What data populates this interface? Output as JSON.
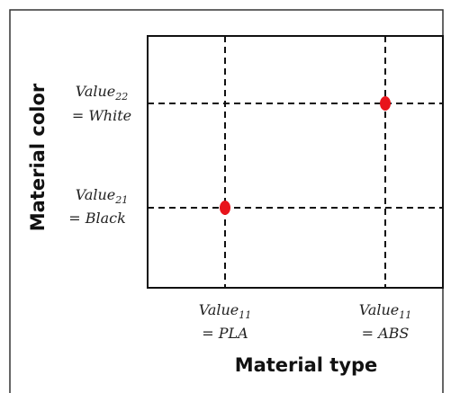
{
  "x_axis": {
    "title": "Material type",
    "ticks": [
      {
        "base": "Value",
        "sub": "11",
        "rest": "= PLA"
      },
      {
        "base": "Value",
        "sub": "11",
        "rest": "= ABS"
      }
    ]
  },
  "y_axis": {
    "title": "Material color",
    "ticks": [
      {
        "base": "Value",
        "sub": "21",
        "rest": "= Black"
      },
      {
        "base": "Value",
        "sub": "22",
        "rest": "= White"
      }
    ]
  }
}
